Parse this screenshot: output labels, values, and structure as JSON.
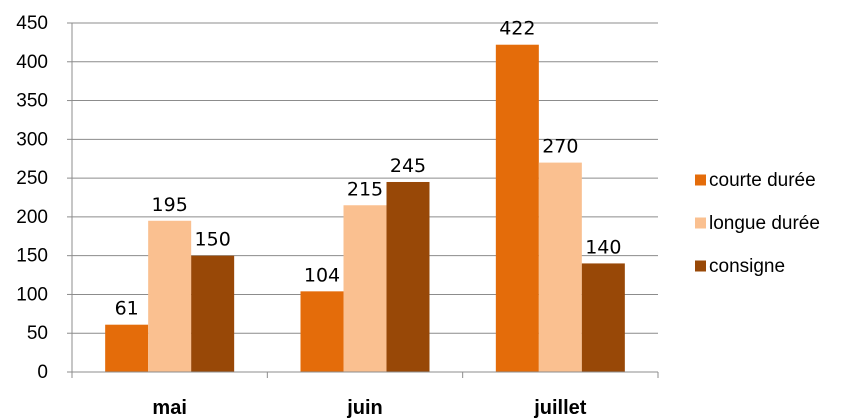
{
  "chart_data": {
    "type": "bar",
    "categories": [
      "mai",
      "juin",
      "juillet"
    ],
    "series": [
      {
        "name": "courte durée",
        "values": [
          61,
          104,
          422
        ],
        "color": "#E46C0A"
      },
      {
        "name": "longue durée",
        "values": [
          195,
          215,
          270
        ],
        "color": "#FAC090"
      },
      {
        "name": "consigne",
        "values": [
          150,
          245,
          140
        ],
        "color": "#984807"
      }
    ],
    "ylim": [
      0,
      450
    ],
    "yticks": [
      0,
      50,
      100,
      150,
      200,
      250,
      300,
      350,
      400,
      450
    ],
    "grid": true,
    "legend_position": "right",
    "data_labels": true
  }
}
